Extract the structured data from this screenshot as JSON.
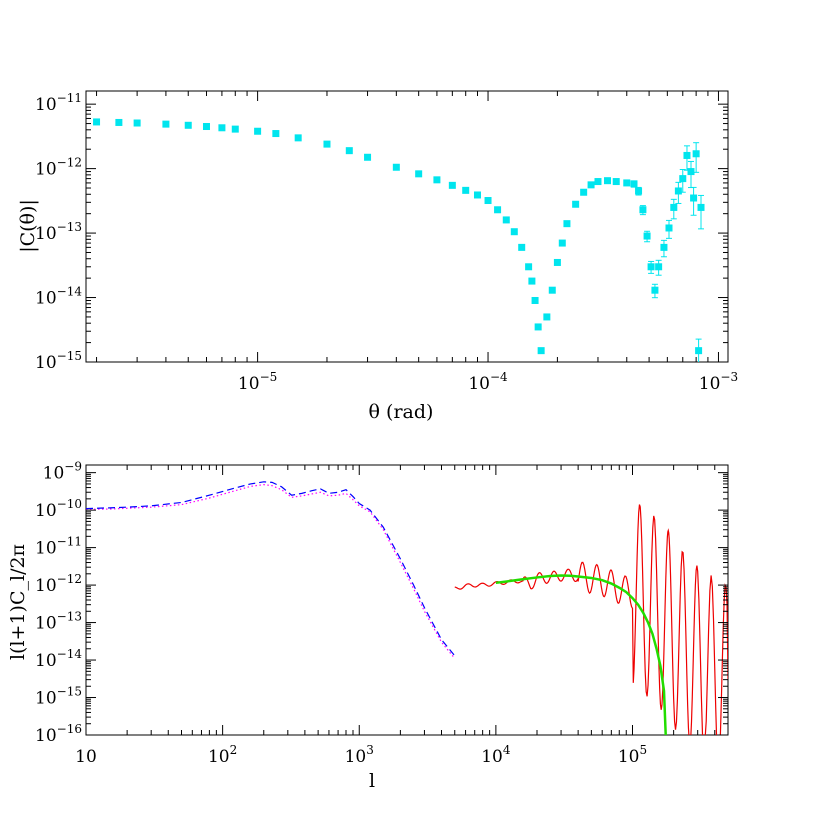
{
  "chart_data": [
    {
      "type": "scatter",
      "panel": "top",
      "xlabel": "θ (rad)",
      "ylabel": "|C(θ)|",
      "xscale": "log",
      "yscale": "log",
      "xlim": [
        1.8e-06,
        0.0011
      ],
      "ylim": [
        1e-15,
        1.6e-11
      ],
      "xticks": [
        {
          "value": 1e-05,
          "base": "10",
          "exp": "−5"
        },
        {
          "value": 0.0001,
          "base": "10",
          "exp": "−4"
        },
        {
          "value": 0.001,
          "base": "10",
          "exp": "−3"
        }
      ],
      "yticks": [
        {
          "value": 1e-15,
          "base": "10",
          "exp": "−15"
        },
        {
          "value": 1e-14,
          "base": "10",
          "exp": "−14"
        },
        {
          "value": 1e-13,
          "base": "10",
          "exp": "−13"
        },
        {
          "value": 1e-12,
          "base": "10",
          "exp": "−12"
        },
        {
          "value": 1e-11,
          "base": "10",
          "exp": "−11"
        }
      ],
      "series": [
        {
          "color": "#00e5ee",
          "marker": "square",
          "error_bars": true,
          "points": [
            [
              2e-06,
              5.3e-12
            ],
            [
              2.5e-06,
              5.2e-12
            ],
            [
              3e-06,
              5.1e-12
            ],
            [
              4e-06,
              4.9e-12
            ],
            [
              5e-06,
              4.7e-12
            ],
            [
              6e-06,
              4.5e-12
            ],
            [
              7e-06,
              4.3e-12
            ],
            [
              8e-06,
              4.1e-12
            ],
            [
              1e-05,
              3.8e-12
            ],
            [
              1.2e-05,
              3.5e-12
            ],
            [
              1.5e-05,
              3e-12
            ],
            [
              2e-05,
              2.4e-12
            ],
            [
              2.5e-05,
              1.9e-12
            ],
            [
              3e-05,
              1.5e-12
            ],
            [
              4e-05,
              1.05e-12
            ],
            [
              5e-05,
              8.3e-13
            ],
            [
              6e-05,
              6.7e-13
            ],
            [
              7e-05,
              5.5e-13
            ],
            [
              8e-05,
              4.6e-13
            ],
            [
              9e-05,
              3.9e-13
            ],
            [
              0.0001,
              3.2e-13
            ],
            [
              0.00011,
              2.3e-13
            ],
            [
              0.00012,
              1.6e-13
            ],
            [
              0.00013,
              1.05e-13
            ],
            [
              0.00014,
              6e-14
            ],
            [
              0.00015,
              3e-14
            ],
            [
              0.000155,
              1.8e-14
            ],
            [
              0.00016,
              9e-15
            ],
            [
              0.000165,
              3.5e-15
            ],
            [
              0.00017,
              1.5e-15
            ],
            [
              0.00018,
              5e-15
            ],
            [
              0.00019,
              1.3e-14
            ],
            [
              0.0002,
              3.5e-14
            ],
            [
              0.00021,
              7e-14
            ],
            [
              0.00022,
              1.4e-13
            ],
            [
              0.00024,
              2.8e-13
            ],
            [
              0.00026,
              4.3e-13
            ],
            [
              0.00028,
              5.6e-13
            ],
            [
              0.0003,
              6.3e-13
            ],
            [
              0.00033,
              6.5e-13
            ],
            [
              0.00036,
              6.3e-13
            ],
            [
              0.0004,
              6e-13
            ],
            [
              0.00043,
              5.8e-13
            ],
            [
              0.00045,
              4.5e-13
            ],
            [
              0.00047,
              2.3e-13
            ],
            [
              0.00049,
              9e-14
            ],
            [
              0.00051,
              3e-14
            ],
            [
              0.00053,
              1.3e-14
            ],
            [
              0.00055,
              3e-14
            ],
            [
              0.00058,
              6e-14
            ],
            [
              0.00061,
              1.2e-13
            ],
            [
              0.00064,
              2.5e-13
            ],
            [
              0.00067,
              4.5e-13
            ],
            [
              0.0007,
              7e-13
            ],
            [
              0.00073,
              1.6e-12
            ],
            [
              0.00076,
              9e-13
            ],
            [
              0.00078,
              3.5e-13
            ],
            [
              0.0008,
              1.7e-12
            ],
            [
              0.00082,
              1.5e-15
            ],
            [
              0.00084,
              2.5e-13
            ]
          ]
        }
      ]
    },
    {
      "type": "line",
      "panel": "bottom",
      "xlabel": "l",
      "ylabel": "l(l+1)C_l/2π",
      "xscale": "log",
      "yscale": "log",
      "xlim": [
        10,
        500000
      ],
      "ylim": [
        1e-16,
        1.6e-09
      ],
      "xticks": [
        {
          "value": 10,
          "base": "10",
          "exp": ""
        },
        {
          "value": 100,
          "base": "10",
          "exp": "2"
        },
        {
          "value": 1000,
          "base": "10",
          "exp": "3"
        },
        {
          "value": 10000,
          "base": "10",
          "exp": "4"
        },
        {
          "value": 100000,
          "base": "10",
          "exp": "5"
        }
      ],
      "yticks": [
        {
          "value": 1e-16,
          "base": "10",
          "exp": "−16"
        },
        {
          "value": 1e-15,
          "base": "10",
          "exp": "−15"
        },
        {
          "value": 1e-14,
          "base": "10",
          "exp": "−14"
        },
        {
          "value": 1e-13,
          "base": "10",
          "exp": "−13"
        },
        {
          "value": 1e-12,
          "base": "10",
          "exp": "−12"
        },
        {
          "value": 1e-11,
          "base": "10",
          "exp": "−11"
        },
        {
          "value": 1e-10,
          "base": "10",
          "exp": "−10"
        },
        {
          "value": 1e-09,
          "base": "10",
          "exp": "−9"
        }
      ],
      "series": [
        {
          "color": "#ff00ff",
          "style": "dotted",
          "points": [
            [
              10,
              1.05e-10
            ],
            [
              15,
              1.07e-10
            ],
            [
              20,
              1.12e-10
            ],
            [
              30,
              1.2e-10
            ],
            [
              50,
              1.4e-10
            ],
            [
              80,
              2.1e-10
            ],
            [
              120,
              3.2e-10
            ],
            [
              160,
              4.3e-10
            ],
            [
              200,
              4.8e-10
            ],
            [
              230,
              4.5e-10
            ],
            [
              270,
              3.5e-10
            ],
            [
              320,
              2.2e-10
            ],
            [
              380,
              2.4e-10
            ],
            [
              450,
              2.7e-10
            ],
            [
              520,
              3e-10
            ],
            [
              600,
              2.4e-10
            ],
            [
              700,
              2.5e-10
            ],
            [
              800,
              2.8e-10
            ],
            [
              900,
              1.9e-10
            ],
            [
              1000,
              1.3e-10
            ],
            [
              1200,
              9e-11
            ],
            [
              1500,
              3e-11
            ],
            [
              2000,
              4e-12
            ],
            [
              2500,
              8e-13
            ],
            [
              3000,
              2e-13
            ],
            [
              4000,
              3e-14
            ],
            [
              5000,
              1.1e-14
            ]
          ]
        },
        {
          "color": "#0000ff",
          "style": "dashed",
          "points": [
            [
              10,
              1.1e-10
            ],
            [
              15,
              1.15e-10
            ],
            [
              20,
              1.2e-10
            ],
            [
              30,
              1.3e-10
            ],
            [
              50,
              1.6e-10
            ],
            [
              80,
              2.5e-10
            ],
            [
              120,
              3.8e-10
            ],
            [
              160,
              5e-10
            ],
            [
              200,
              5.7e-10
            ],
            [
              230,
              5.5e-10
            ],
            [
              270,
              4.2e-10
            ],
            [
              320,
              2.5e-10
            ],
            [
              380,
              2.8e-10
            ],
            [
              450,
              3.3e-10
            ],
            [
              520,
              3.7e-10
            ],
            [
              600,
              2.8e-10
            ],
            [
              700,
              3e-10
            ],
            [
              800,
              3.5e-10
            ],
            [
              900,
              2.3e-10
            ],
            [
              1000,
              1.5e-10
            ],
            [
              1200,
              1e-10
            ],
            [
              1500,
              3.5e-11
            ],
            [
              2000,
              5e-12
            ],
            [
              2500,
              1e-12
            ],
            [
              3000,
              2.5e-13
            ],
            [
              4000,
              3.5e-14
            ],
            [
              5000,
              1.3e-14
            ]
          ]
        },
        {
          "color": "#ee0000",
          "style": "solid",
          "oscillating": true,
          "points": [
            [
              5000,
              8e-13
            ],
            [
              6000,
              9.5e-13
            ],
            [
              7000,
              1e-12
            ],
            [
              8000,
              1e-12
            ],
            [
              10000,
              1.1e-12
            ],
            [
              12000,
              1.2e-12
            ],
            [
              15000,
              1.3e-12
            ],
            [
              18000,
              1.05e-12
            ],
            [
              20000,
              1.5e-12
            ],
            [
              25000,
              1.6e-12
            ],
            [
              30000,
              1.8e-12
            ],
            [
              35000,
              1.9e-12
            ],
            [
              40000,
              1.7e-12
            ],
            [
              50000,
              1.5e-12
            ],
            [
              60000,
              1.3e-12
            ],
            [
              70000,
              1e-12
            ],
            [
              80000,
              8e-13
            ],
            [
              100000,
              6e-13
            ],
            [
              120000,
              4e-13
            ],
            [
              150000,
              2e-13
            ],
            [
              180000,
              1e-13
            ],
            [
              200000,
              5e-14
            ],
            [
              250000,
              2e-14
            ],
            [
              300000,
              1e-14
            ],
            [
              400000,
              5e-15
            ],
            [
              500000,
              3e-15
            ]
          ]
        },
        {
          "color": "#22dd00",
          "style": "solid",
          "points": [
            [
              10000,
              1.15e-12
            ],
            [
              12000,
              1.25e-12
            ],
            [
              15000,
              1.4e-12
            ],
            [
              20000,
              1.6e-12
            ],
            [
              25000,
              1.75e-12
            ],
            [
              30000,
              1.8e-12
            ],
            [
              35000,
              1.78e-12
            ],
            [
              40000,
              1.7e-12
            ],
            [
              50000,
              1.55e-12
            ],
            [
              60000,
              1.35e-12
            ],
            [
              70000,
              1.1e-12
            ],
            [
              80000,
              8.5e-13
            ],
            [
              90000,
              6.5e-13
            ],
            [
              100000,
              4.5e-13
            ],
            [
              110000,
              3e-13
            ],
            [
              120000,
              1.8e-13
            ],
            [
              130000,
              1e-13
            ],
            [
              140000,
              5e-14
            ],
            [
              150000,
              2e-14
            ],
            [
              160000,
              7e-15
            ],
            [
              170000,
              1.5e-15
            ],
            [
              175000,
              1e-16
            ]
          ]
        }
      ]
    }
  ]
}
